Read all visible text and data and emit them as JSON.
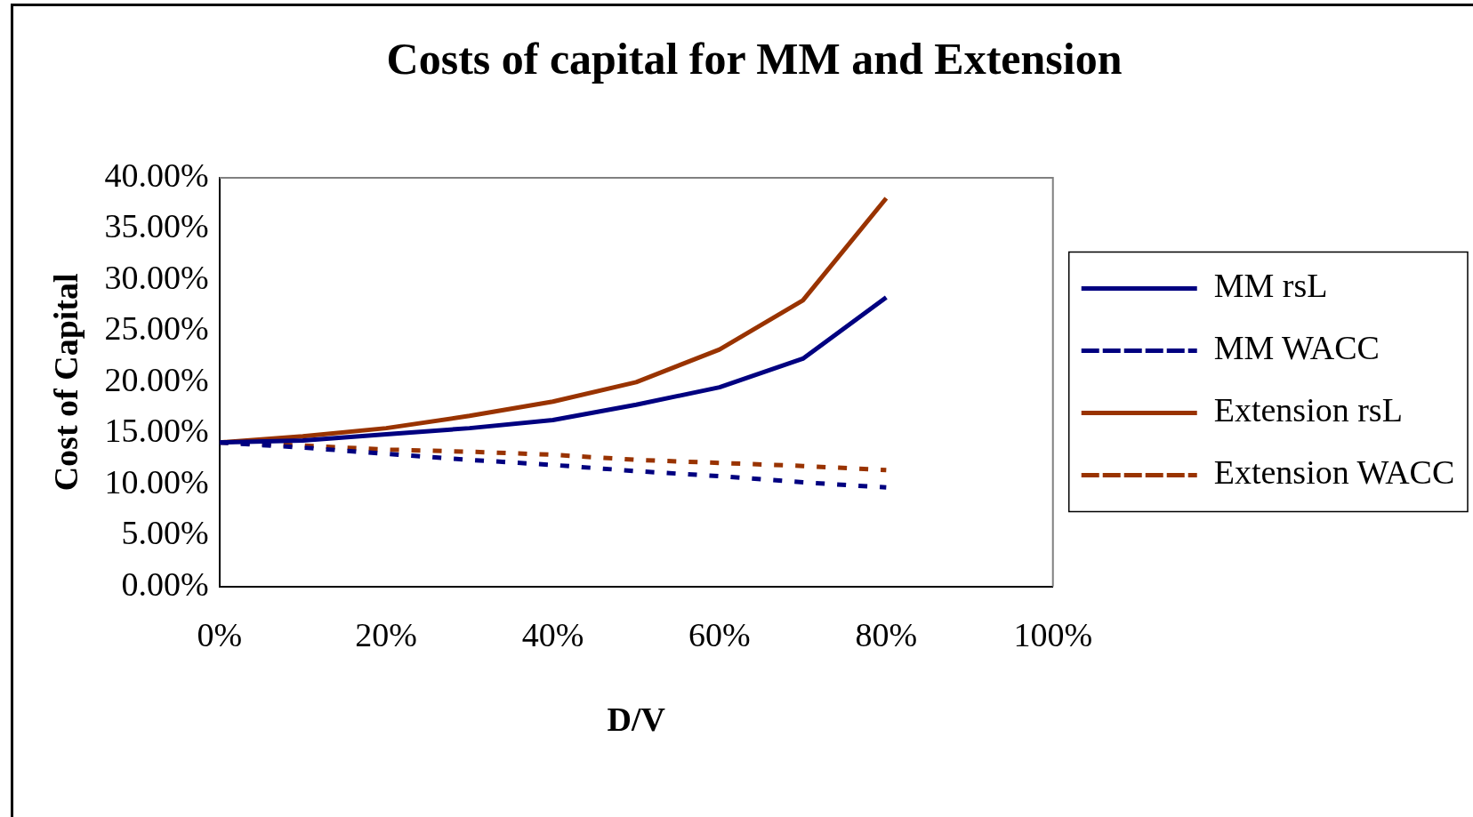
{
  "chart_data": {
    "type": "line",
    "title": "Costs of capital for MM and Extension",
    "xlabel": "D/V",
    "ylabel": "Cost of Capital",
    "x": [
      0,
      10,
      20,
      30,
      40,
      50,
      60,
      70,
      80
    ],
    "series": [
      {
        "name": "MM rsL",
        "color": "#000080",
        "line_style": "solid",
        "values": [
          14.1,
          14.3,
          14.9,
          15.5,
          16.3,
          17.8,
          19.5,
          22.3,
          28.3
        ]
      },
      {
        "name": "MM WACC",
        "color": "#000080",
        "line_style": "dashed",
        "values": [
          14.1,
          13.6,
          13.0,
          12.4,
          11.9,
          11.3,
          10.8,
          10.2,
          9.7
        ]
      },
      {
        "name": "Extension rsL",
        "color": "#993300",
        "line_style": "solid",
        "values": [
          14.1,
          14.7,
          15.5,
          16.7,
          18.1,
          20.0,
          23.2,
          28.0,
          38.0
        ]
      },
      {
        "name": "Extension WACC",
        "color": "#993300",
        "line_style": "dashed",
        "values": [
          14.1,
          13.8,
          13.4,
          13.2,
          12.9,
          12.4,
          12.1,
          11.8,
          11.4
        ]
      }
    ],
    "xlim": [
      0,
      100
    ],
    "xticks": [
      {
        "value": 0,
        "label": "0%"
      },
      {
        "value": 20,
        "label": "20%"
      },
      {
        "value": 40,
        "label": "40%"
      },
      {
        "value": 60,
        "label": "60%"
      },
      {
        "value": 80,
        "label": "80%"
      },
      {
        "value": 100,
        "label": "100%"
      }
    ],
    "ylim": [
      0,
      40
    ],
    "yticks": [
      {
        "value": 0,
        "label": "0.00%"
      },
      {
        "value": 5,
        "label": "5.00%"
      },
      {
        "value": 10,
        "label": "10.00%"
      },
      {
        "value": 15,
        "label": "15.00%"
      },
      {
        "value": 20,
        "label": "20.00%"
      },
      {
        "value": 25,
        "label": "25.00%"
      },
      {
        "value": 30,
        "label": "30.00%"
      },
      {
        "value": 35,
        "label": "35.00%"
      },
      {
        "value": 40,
        "label": "40.00%"
      }
    ],
    "grid": false,
    "legend": "right",
    "marker": "none"
  }
}
